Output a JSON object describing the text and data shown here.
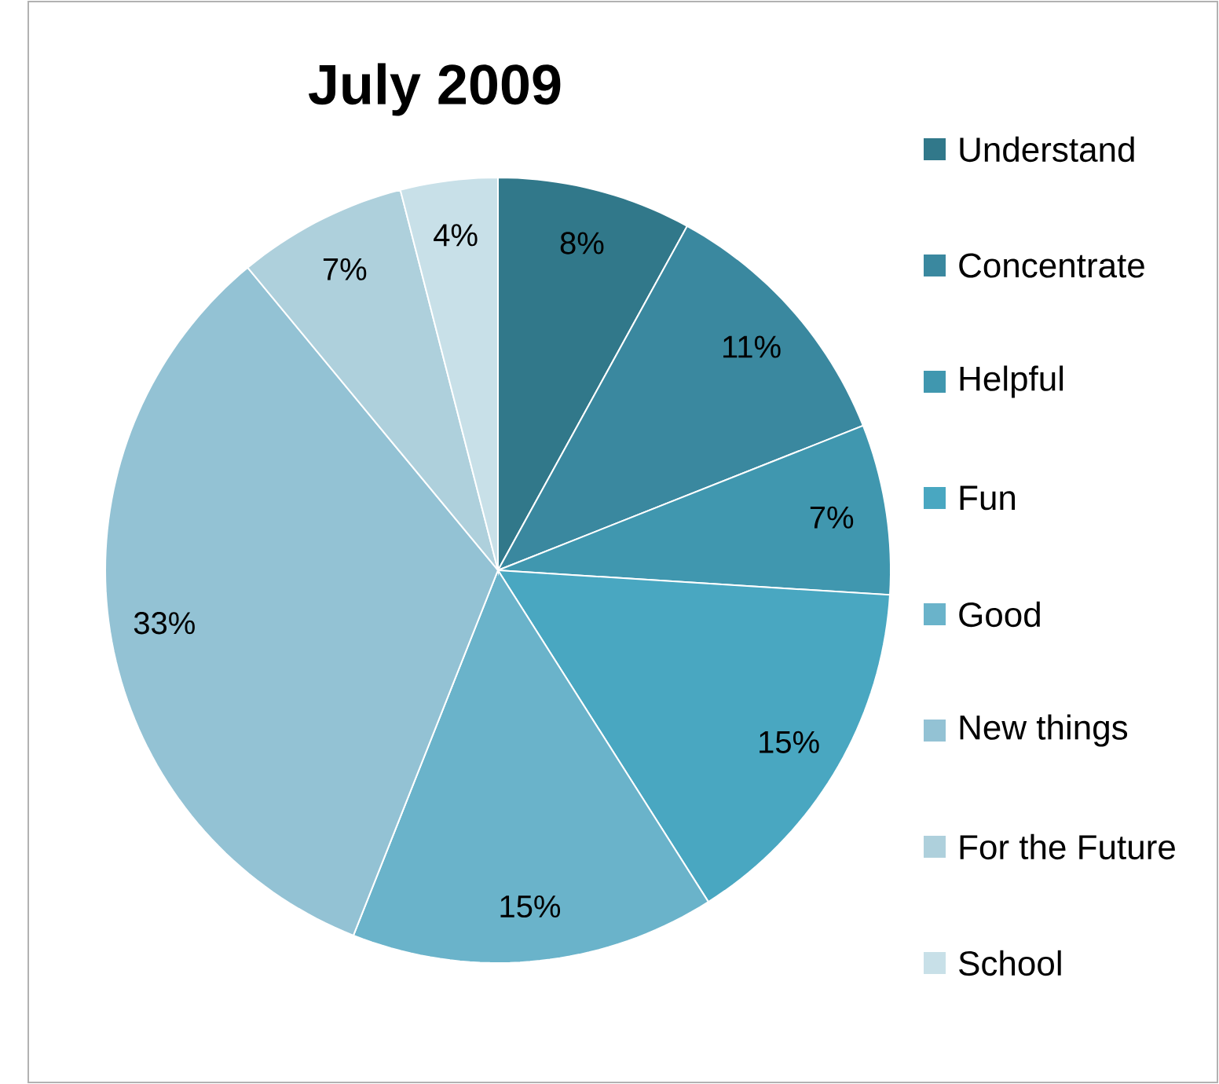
{
  "chart_data": {
    "type": "pie",
    "title": "July 2009",
    "categories": [
      "Understand",
      "Concentrate",
      "Helpful",
      "Fun",
      "Good",
      "New things",
      "For the Future",
      "School"
    ],
    "values": [
      8,
      11,
      7,
      15,
      15,
      33,
      7,
      4
    ],
    "value_labels": [
      "8%",
      "11%",
      "7%",
      "15%",
      "15%",
      "33%",
      "7%",
      "4%"
    ],
    "colors": [
      "#31788a",
      "#3a889f",
      "#4097af",
      "#49a7c1",
      "#6ab3ca",
      "#93c2d4",
      "#aed0dc",
      "#c8e0e8"
    ],
    "legend": "right"
  }
}
